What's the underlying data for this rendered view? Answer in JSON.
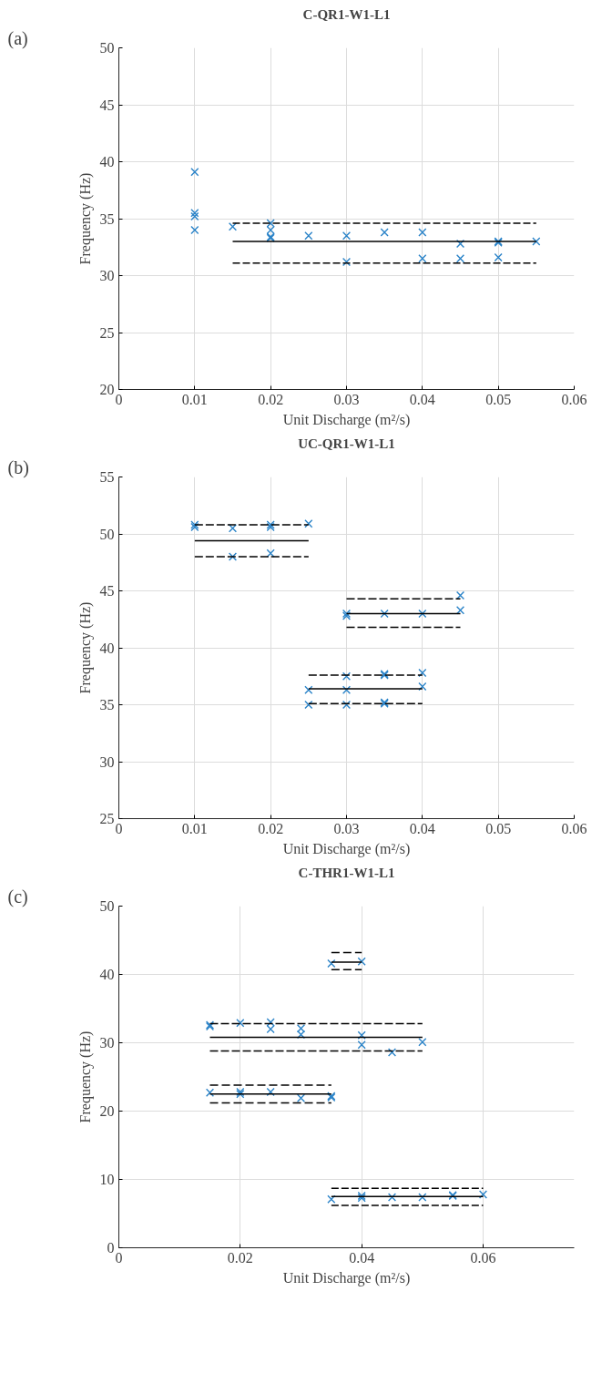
{
  "chart_data": [
    {
      "type": "scatter",
      "title": "C-QR1-W1-L1",
      "xlabel": "Unit Discharge (m²/s)",
      "ylabel": "Frequency (Hz)",
      "annotations": [
        "(a)"
      ],
      "xlim": [
        0,
        0.06
      ],
      "xticks": [
        0,
        0.01,
        0.02,
        0.03,
        0.04,
        0.05,
        0.06
      ],
      "ylim": [
        20,
        50
      ],
      "yticks": [
        20,
        25,
        30,
        35,
        40,
        45,
        50
      ],
      "grid": true,
      "series": [
        {
          "marker": "cross",
          "color": "#2a83c8",
          "x": [
            0.01,
            0.01,
            0.01,
            0.01,
            0.015,
            0.02,
            0.02,
            0.02,
            0.02,
            0.025,
            0.03,
            0.03,
            0.035,
            0.04,
            0.04,
            0.045,
            0.045,
            0.05,
            0.05,
            0.05,
            0.055
          ],
          "values": [
            39.1,
            35.5,
            35.2,
            34.0,
            34.3,
            34.6,
            34.0,
            33.4,
            33.3,
            33.5,
            33.5,
            31.2,
            33.8,
            33.8,
            31.5,
            32.8,
            31.5,
            33.0,
            32.9,
            31.6,
            33.0
          ]
        },
        {
          "type": "line",
          "color": "#000000",
          "line_style": "solid",
          "x": [
            0.015,
            0.055
          ],
          "values": [
            33.0,
            33.0
          ]
        },
        {
          "type": "line",
          "color": "#000000",
          "line_style": "dashed",
          "x": [
            0.015,
            0.055
          ],
          "values": [
            34.6,
            34.6
          ]
        },
        {
          "type": "line",
          "color": "#000000",
          "line_style": "dashed",
          "x": [
            0.015,
            0.055
          ],
          "values": [
            31.1,
            31.1
          ]
        }
      ]
    },
    {
      "type": "scatter",
      "title": "UC-QR1-W1-L1",
      "xlabel": "Unit Discharge (m²/s)",
      "ylabel": "Frequency (Hz)",
      "annotations": [
        "(b)"
      ],
      "xlim": [
        0,
        0.06
      ],
      "xticks": [
        0,
        0.01,
        0.02,
        0.03,
        0.04,
        0.05,
        0.06
      ],
      "ylim": [
        25,
        55
      ],
      "yticks": [
        25,
        30,
        35,
        40,
        45,
        50,
        55
      ],
      "grid": true,
      "series": [
        {
          "marker": "cross",
          "color": "#2a83c8",
          "x": [
            0.01,
            0.01,
            0.015,
            0.015,
            0.02,
            0.02,
            0.02,
            0.025,
            0.03,
            0.03,
            0.035,
            0.04,
            0.045,
            0.045,
            0.025,
            0.025,
            0.03,
            0.03,
            0.03,
            0.035,
            0.035,
            0.035,
            0.035,
            0.04,
            0.04
          ],
          "values": [
            50.8,
            50.6,
            50.5,
            48.0,
            50.8,
            50.6,
            48.3,
            50.9,
            43.0,
            42.8,
            43.0,
            43.0,
            44.6,
            43.3,
            36.3,
            35.0,
            37.5,
            36.3,
            35.0,
            37.7,
            37.6,
            35.2,
            35.1,
            37.8,
            36.6
          ]
        },
        {
          "type": "line",
          "color": "#000000",
          "line_style": "solid",
          "x": [
            0.01,
            0.025
          ],
          "values": [
            49.4,
            49.4
          ]
        },
        {
          "type": "line",
          "color": "#000000",
          "line_style": "dashed",
          "x": [
            0.01,
            0.025
          ],
          "values": [
            50.8,
            50.8
          ]
        },
        {
          "type": "line",
          "color": "#000000",
          "line_style": "dashed",
          "x": [
            0.01,
            0.025
          ],
          "values": [
            48.0,
            48.0
          ]
        },
        {
          "type": "line",
          "color": "#000000",
          "line_style": "solid",
          "x": [
            0.03,
            0.045
          ],
          "values": [
            43.0,
            43.0
          ]
        },
        {
          "type": "line",
          "color": "#000000",
          "line_style": "dashed",
          "x": [
            0.03,
            0.045
          ],
          "values": [
            44.3,
            44.3
          ]
        },
        {
          "type": "line",
          "color": "#000000",
          "line_style": "dashed",
          "x": [
            0.03,
            0.045
          ],
          "values": [
            41.8,
            41.8
          ]
        },
        {
          "type": "line",
          "color": "#000000",
          "line_style": "solid",
          "x": [
            0.025,
            0.04
          ],
          "values": [
            36.4,
            36.4
          ]
        },
        {
          "type": "line",
          "color": "#000000",
          "line_style": "dashed",
          "x": [
            0.025,
            0.04
          ],
          "values": [
            37.6,
            37.6
          ]
        },
        {
          "type": "line",
          "color": "#000000",
          "line_style": "dashed",
          "x": [
            0.025,
            0.04
          ],
          "values": [
            35.1,
            35.1
          ]
        }
      ]
    },
    {
      "type": "scatter",
      "title": "C-THR1-W1-L1",
      "xlabel": "Unit Discharge (m²/s)",
      "ylabel": "Frequency (Hz)",
      "annotations": [
        "(c)"
      ],
      "xlim": [
        0,
        0.075
      ],
      "xticks": [
        0,
        0.02,
        0.04,
        0.06
      ],
      "ylim": [
        0,
        50
      ],
      "yticks": [
        0,
        10,
        20,
        30,
        40,
        50
      ],
      "grid": true,
      "series": [
        {
          "marker": "cross",
          "color": "#2a83c8",
          "x": [
            0.035,
            0.04,
            0.015,
            0.015,
            0.02,
            0.025,
            0.025,
            0.03,
            0.03,
            0.04,
            0.04,
            0.045,
            0.05,
            0.015,
            0.02,
            0.02,
            0.025,
            0.03,
            0.035,
            0.035,
            0.035,
            0.04,
            0.04,
            0.045,
            0.05,
            0.055,
            0.055,
            0.06
          ],
          "values": [
            41.6,
            41.9,
            32.6,
            32.4,
            32.9,
            33.0,
            32.0,
            32.1,
            31.2,
            31.1,
            29.7,
            28.6,
            30.1,
            22.7,
            22.8,
            22.5,
            22.8,
            21.9,
            22.2,
            22.0,
            7.1,
            7.6,
            7.3,
            7.4,
            7.4,
            7.6,
            7.7,
            7.8
          ]
        },
        {
          "type": "line",
          "color": "#000000",
          "line_style": "solid",
          "x": [
            0.035,
            0.04
          ],
          "values": [
            41.8,
            41.8
          ]
        },
        {
          "type": "line",
          "color": "#000000",
          "line_style": "dashed",
          "x": [
            0.035,
            0.04
          ],
          "values": [
            43.2,
            43.2
          ]
        },
        {
          "type": "line",
          "color": "#000000",
          "line_style": "dashed",
          "x": [
            0.035,
            0.04
          ],
          "values": [
            40.7,
            40.7
          ]
        },
        {
          "type": "line",
          "color": "#000000",
          "line_style": "solid",
          "x": [
            0.015,
            0.05
          ],
          "values": [
            30.8,
            30.8
          ]
        },
        {
          "type": "line",
          "color": "#000000",
          "line_style": "dashed",
          "x": [
            0.015,
            0.05
          ],
          "values": [
            32.8,
            32.8
          ]
        },
        {
          "type": "line",
          "color": "#000000",
          "line_style": "dashed",
          "x": [
            0.015,
            0.05
          ],
          "values": [
            28.8,
            28.8
          ]
        },
        {
          "type": "line",
          "color": "#000000",
          "line_style": "solid",
          "x": [
            0.015,
            0.035
          ],
          "values": [
            22.5,
            22.5
          ]
        },
        {
          "type": "line",
          "color": "#000000",
          "line_style": "dashed",
          "x": [
            0.015,
            0.035
          ],
          "values": [
            23.8,
            23.8
          ]
        },
        {
          "type": "line",
          "color": "#000000",
          "line_style": "dashed",
          "x": [
            0.015,
            0.035
          ],
          "values": [
            21.2,
            21.2
          ]
        },
        {
          "type": "line",
          "color": "#000000",
          "line_style": "solid",
          "x": [
            0.035,
            0.06
          ],
          "values": [
            7.5,
            7.5
          ]
        },
        {
          "type": "line",
          "color": "#000000",
          "line_style": "dashed",
          "x": [
            0.035,
            0.06
          ],
          "values": [
            8.7,
            8.7
          ]
        },
        {
          "type": "line",
          "color": "#000000",
          "line_style": "dashed",
          "x": [
            0.035,
            0.06
          ],
          "values": [
            6.2,
            6.2
          ]
        }
      ]
    }
  ]
}
